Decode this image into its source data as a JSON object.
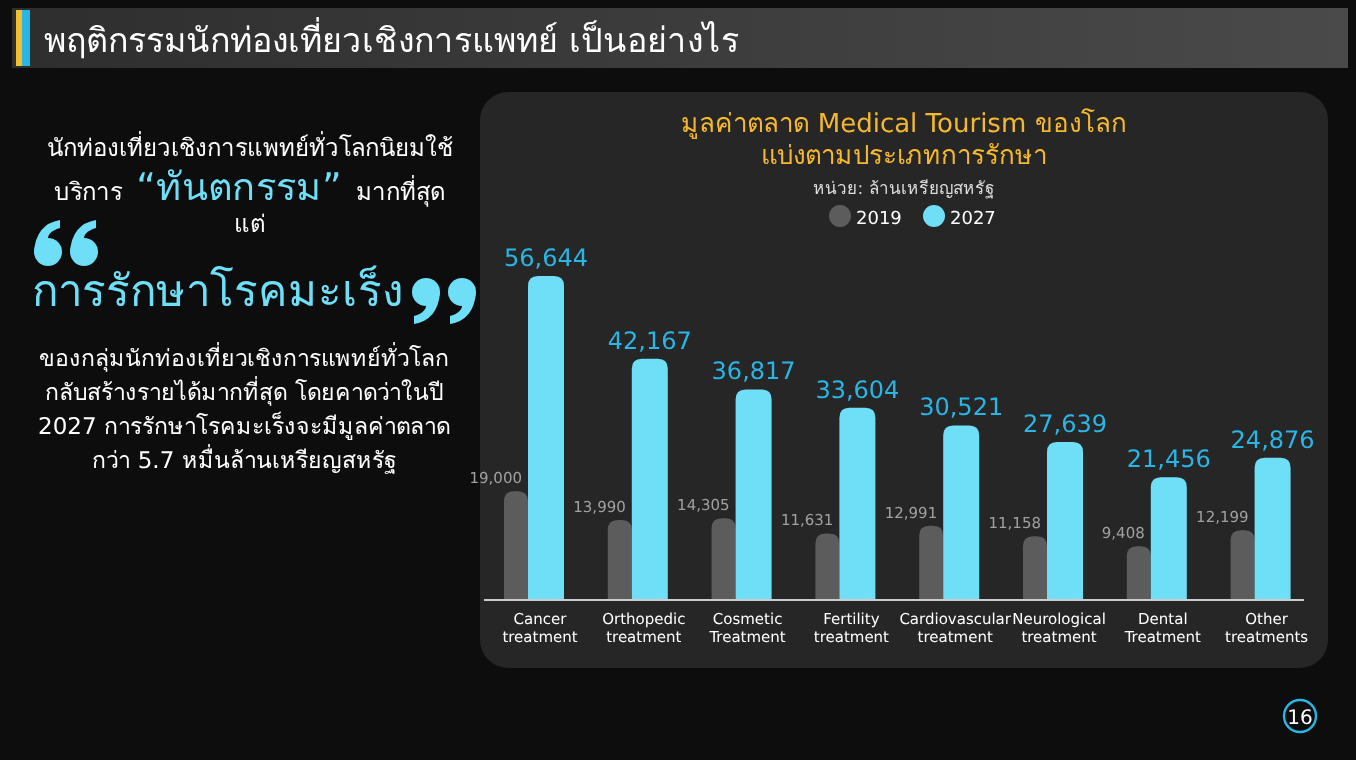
{
  "chart_data": {
    "type": "bar",
    "title": "พฤติกรรมนักท่องเที่ยวเชิงการแพทย์ เป็นอย่างไร",
    "subtitle": "มูลค่าตลาด Medical Tourism ของโลก\nแบ่งตามประเภทการรักษา",
    "categories": [
      "Cancer\ntreatment",
      "Orthopedic\ntreatment",
      "Cosmetic\nTreatment",
      "Fertility\ntreatment",
      "Cardiovascular\ntreatment",
      "Neurological\ntreatment",
      "Dental\nTreatment",
      "Other\ntreatments"
    ],
    "series": [
      {
        "name": "2019",
        "color": "#5c5c5c",
        "values": [
          19000,
          13990,
          14305,
          11631,
          12991,
          11158,
          9408,
          12199
        ],
        "value_labels": [
          "19,000",
          "13,990",
          "14,305",
          "11,631",
          "12,991",
          "11,158",
          "9,408",
          "12,199"
        ]
      },
      {
        "name": "2027",
        "color": "#6fdff8",
        "values": [
          56644,
          42167,
          36817,
          33604,
          30521,
          27639,
          21456,
          24876
        ],
        "value_labels": [
          "56,644",
          "42,167",
          "36,817",
          "33,604",
          "30,521",
          "27,639",
          "21,456",
          "24,876"
        ]
      }
    ],
    "legend": "top",
    "annotations": [
      "หน่วย: ล้านเหรียญสหรัฐ",
      "นักท่องเที่ยวเชิงการแพทย์ทั่วโลกนิยมใช้",
      "บริการ",
      "“ทันตกรรม”",
      "มากที่สุด",
      "แต่",
      "การรักษาโรคมะเร็ง",
      "ของกลุ่มนักท่องเที่ยวเชิงการแพทย์ทั่วโลก",
      "กลับสร้างรายได้มากที่สุด โดยคาดว่าในปี",
      "2027 การรักษาโรคมะเร็งจะมีมูลค่าตลาด",
      "กว่า 5.7 หมื่นล้านเหรียญสหรัฐ",
      "16"
    ]
  }
}
